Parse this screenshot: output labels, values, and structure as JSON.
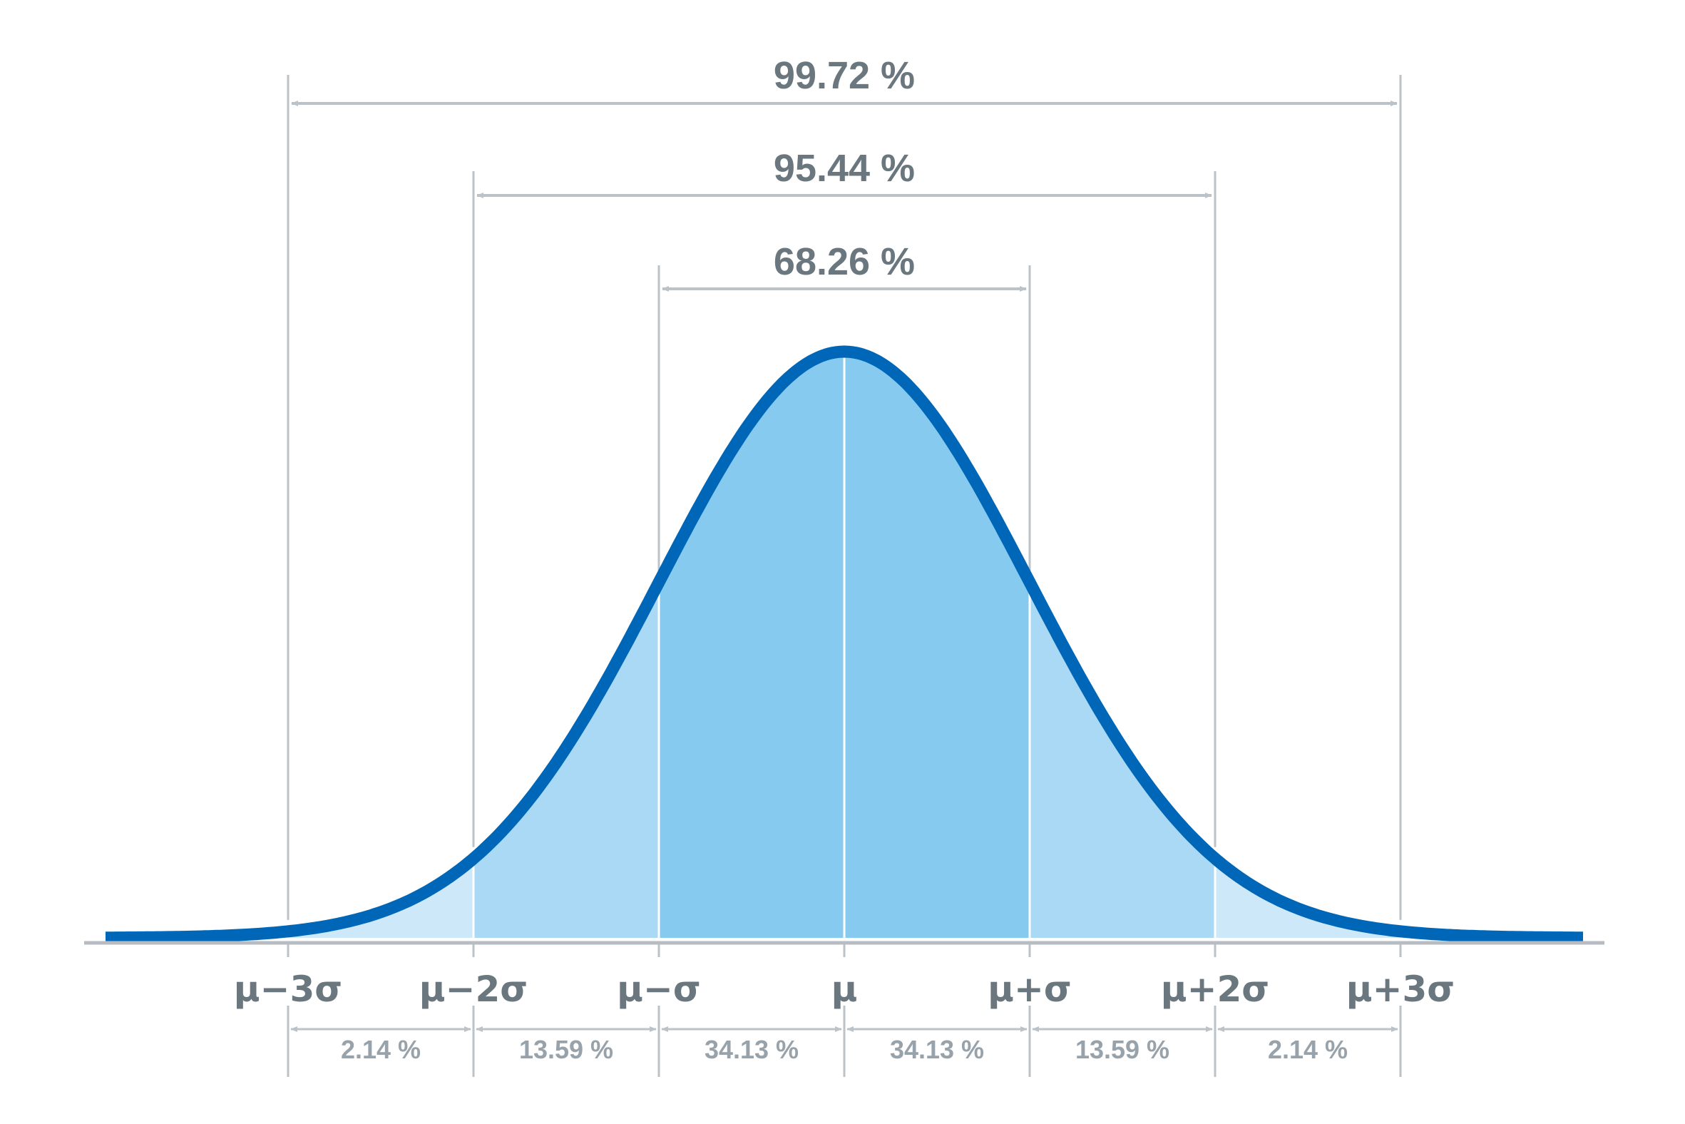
{
  "chart_data": {
    "type": "area",
    "title": "",
    "distribution": "normal",
    "x_ticks": [
      -3,
      -2,
      -1,
      0,
      1,
      2,
      3
    ],
    "x_tick_labels": [
      "μ−3σ",
      "μ−2σ",
      "μ−σ",
      "μ",
      "μ+σ",
      "μ+2σ",
      "μ+3σ"
    ],
    "x_range": [
      -4,
      4
    ],
    "segments": [
      {
        "from": -3,
        "to": -2,
        "percent": 2.14,
        "label": "2.14 %"
      },
      {
        "from": -2,
        "to": -1,
        "percent": 13.59,
        "label": "13.59 %"
      },
      {
        "from": -1,
        "to": 0,
        "percent": 34.13,
        "label": "34.13 %"
      },
      {
        "from": 0,
        "to": 1,
        "percent": 34.13,
        "label": "34.13 %"
      },
      {
        "from": 1,
        "to": 2,
        "percent": 13.59,
        "label": "13.59 %"
      },
      {
        "from": 2,
        "to": 3,
        "percent": 2.14,
        "label": "2.14 %"
      }
    ],
    "intervals": [
      {
        "sigma": 1,
        "percent": 68.26,
        "label": "68.26 %"
      },
      {
        "sigma": 2,
        "percent": 95.44,
        "label": "95.44 %"
      },
      {
        "sigma": 3,
        "percent": 99.72,
        "label": "99.72 %"
      }
    ],
    "grid": false
  },
  "colors": {
    "curve": "#0067b8",
    "fill_1sigma": "#86cbef",
    "fill_2sigma": "#a9d9f5",
    "fill_3sigma": "#cde9f9",
    "fill_tail": "#e6f4fc",
    "guide": "#bcc3c8",
    "axis": "#b6bcc1",
    "label_dark": "#6b777f",
    "label_light": "#97a2aa"
  }
}
